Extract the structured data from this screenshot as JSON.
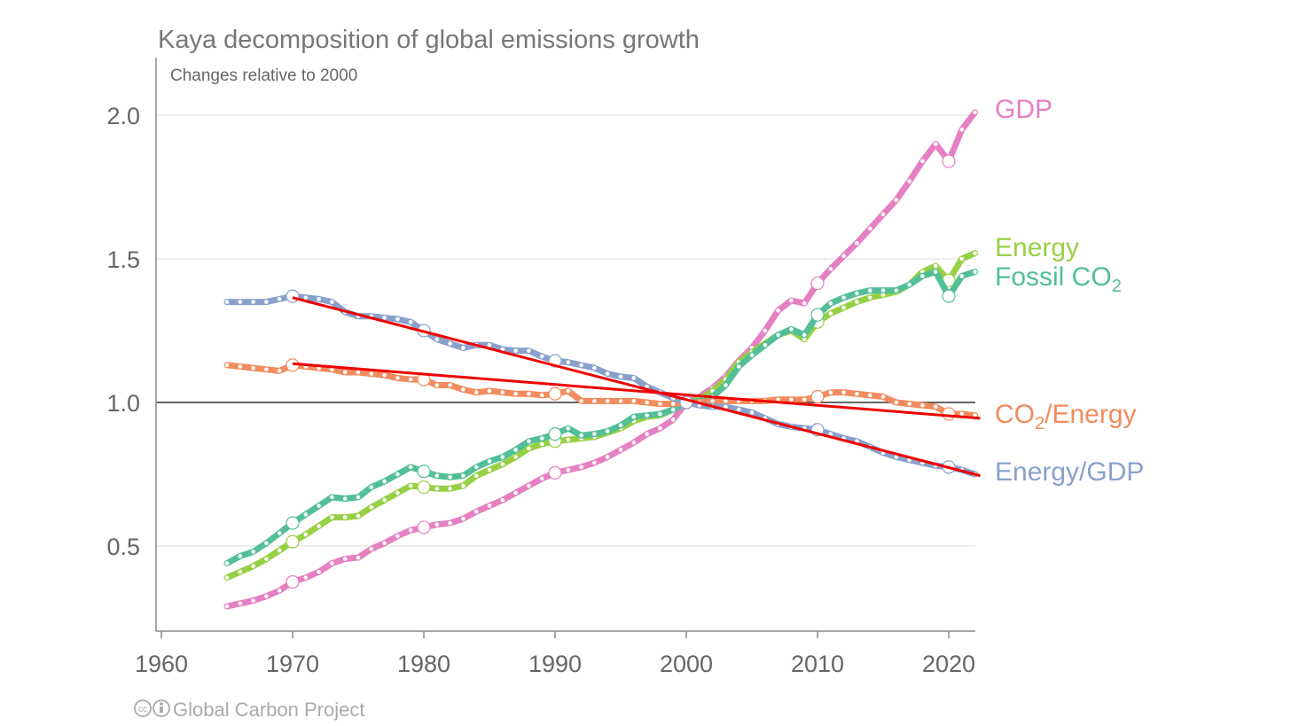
{
  "chart_data": {
    "type": "line",
    "title": "Kaya decomposition of global emissions growth",
    "subtitle": "Changes relative to 2000",
    "source": "Global Carbon Project",
    "xlabel": "",
    "ylabel": "",
    "xlim": [
      1959.6,
      2022.4
    ],
    "ylim": [
      0.2,
      2.2
    ],
    "x_ticks": [
      "1960",
      "1970",
      "1980",
      "1990",
      "2000",
      "2010",
      "2020"
    ],
    "y_ticks": [
      "0.5",
      "1.0",
      "1.5",
      "2.0"
    ],
    "reference_line": 1.0,
    "start_year": 1965,
    "series": [
      {
        "name": "GDP",
        "label": "GDP",
        "color": "#e580c2",
        "values": [
          0.29,
          0.3,
          0.31,
          0.325,
          0.345,
          0.375,
          0.39,
          0.41,
          0.44,
          0.455,
          0.46,
          0.49,
          0.51,
          0.535,
          0.555,
          0.565,
          0.575,
          0.58,
          0.595,
          0.62,
          0.64,
          0.66,
          0.685,
          0.71,
          0.735,
          0.755,
          0.765,
          0.775,
          0.79,
          0.81,
          0.835,
          0.86,
          0.89,
          0.91,
          0.94,
          1.0,
          1.02,
          1.05,
          1.09,
          1.145,
          1.19,
          1.25,
          1.32,
          1.355,
          1.345,
          1.415,
          1.465,
          1.51,
          1.555,
          1.605,
          1.655,
          1.705,
          1.77,
          1.84,
          1.9,
          1.84,
          1.95,
          2.01
        ]
      },
      {
        "name": "Energy",
        "label": "Energy",
        "color": "#97d045",
        "values": [
          0.39,
          0.41,
          0.43,
          0.455,
          0.485,
          0.515,
          0.54,
          0.57,
          0.6,
          0.6,
          0.605,
          0.635,
          0.66,
          0.685,
          0.71,
          0.705,
          0.7,
          0.7,
          0.71,
          0.745,
          0.765,
          0.785,
          0.81,
          0.84,
          0.855,
          0.865,
          0.87,
          0.875,
          0.88,
          0.895,
          0.91,
          0.935,
          0.95,
          0.955,
          0.975,
          1.0,
          1.01,
          1.04,
          1.08,
          1.14,
          1.175,
          1.205,
          1.235,
          1.25,
          1.22,
          1.28,
          1.31,
          1.33,
          1.35,
          1.365,
          1.375,
          1.385,
          1.41,
          1.455,
          1.475,
          1.425,
          1.5,
          1.52
        ]
      },
      {
        "name": "Fossil CO2",
        "label": "Fossil CO",
        "label_sub": "2",
        "color": "#52bf97",
        "values": [
          0.44,
          0.465,
          0.48,
          0.51,
          0.545,
          0.58,
          0.61,
          0.64,
          0.67,
          0.665,
          0.67,
          0.705,
          0.725,
          0.75,
          0.775,
          0.76,
          0.745,
          0.74,
          0.745,
          0.775,
          0.795,
          0.81,
          0.835,
          0.865,
          0.875,
          0.89,
          0.91,
          0.885,
          0.89,
          0.9,
          0.92,
          0.95,
          0.955,
          0.96,
          0.975,
          1.0,
          1.005,
          1.02,
          1.06,
          1.125,
          1.165,
          1.2,
          1.235,
          1.255,
          1.235,
          1.305,
          1.345,
          1.365,
          1.38,
          1.39,
          1.39,
          1.39,
          1.41,
          1.44,
          1.455,
          1.37,
          1.44,
          1.455
        ]
      },
      {
        "name": "CO2/Energy",
        "label": "CO",
        "label_sub": "2",
        "label_rest": "/Energy",
        "color": "#f28b5d",
        "values": [
          1.13,
          1.125,
          1.12,
          1.115,
          1.11,
          1.13,
          1.125,
          1.12,
          1.115,
          1.105,
          1.105,
          1.1,
          1.095,
          1.085,
          1.08,
          1.08,
          1.06,
          1.06,
          1.045,
          1.035,
          1.04,
          1.035,
          1.03,
          1.03,
          1.025,
          1.03,
          1.04,
          1.005,
          1.005,
          1.005,
          1.005,
          1.005,
          1.0,
          0.995,
          0.995,
          1.0,
          1.0,
          1.005,
          1.005,
          1.005,
          1.005,
          1.005,
          1.01,
          1.01,
          1.01,
          1.02,
          1.035,
          1.035,
          1.03,
          1.025,
          1.02,
          1.0,
          0.995,
          0.99,
          0.985,
          0.96,
          0.96,
          0.955
        ]
      },
      {
        "name": "Energy/GDP",
        "label": "Energy/GDP",
        "color": "#8aa0cc",
        "values": [
          1.35,
          1.35,
          1.35,
          1.35,
          1.36,
          1.37,
          1.365,
          1.36,
          1.35,
          1.315,
          1.3,
          1.3,
          1.295,
          1.29,
          1.28,
          1.25,
          1.22,
          1.205,
          1.19,
          1.2,
          1.2,
          1.185,
          1.18,
          1.18,
          1.16,
          1.145,
          1.14,
          1.13,
          1.12,
          1.1,
          1.09,
          1.085,
          1.055,
          1.035,
          1.015,
          1.0,
          0.99,
          0.985,
          0.985,
          0.975,
          0.965,
          0.945,
          0.925,
          0.915,
          0.91,
          0.905,
          0.89,
          0.875,
          0.865,
          0.845,
          0.825,
          0.81,
          0.8,
          0.79,
          0.78,
          0.775,
          0.765,
          0.75
        ]
      }
    ],
    "trend_lines": [
      {
        "name": "Energy/GDP trend",
        "color": "#ee0000",
        "points": [
          [
            1970,
            1.365
          ],
          [
            2022.4,
            0.745
          ]
        ]
      },
      {
        "name": "CO2/Energy trend",
        "color": "#ee0000",
        "points": [
          [
            1970,
            1.135
          ],
          [
            2022.4,
            0.945
          ]
        ]
      }
    ],
    "legend": "right, inline labels"
  }
}
